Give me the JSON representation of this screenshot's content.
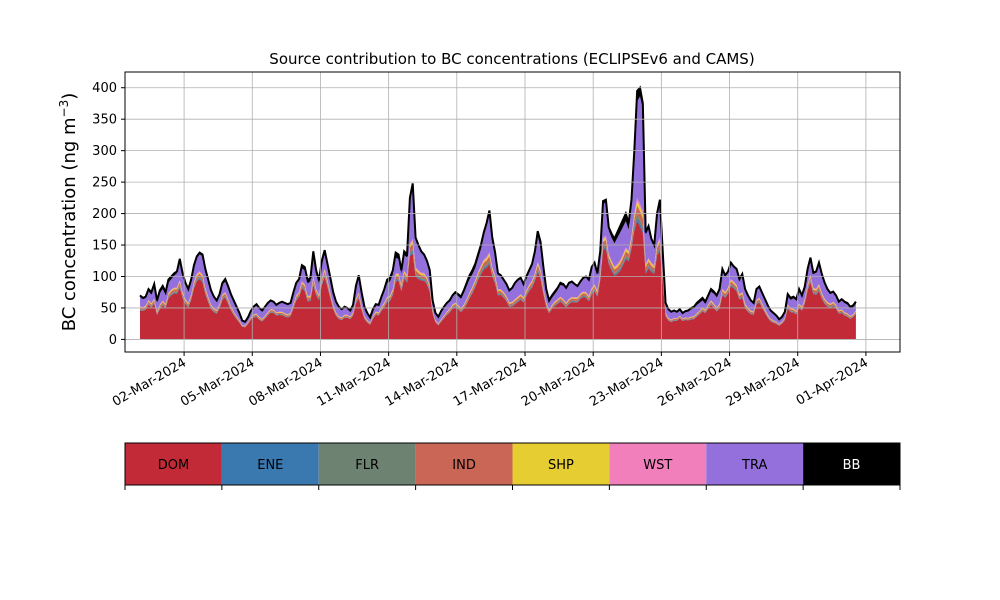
{
  "chart_data": {
    "type": "area",
    "title": "Source contribution to BC concentrations (ECLIPSEv6 and CAMS)",
    "ylabel": "BC concentration (ng m",
    "ylabel_sup": "−3",
    "ylabel_close": ")",
    "ylim": [
      -20,
      425
    ],
    "yticks": [
      0,
      50,
      100,
      150,
      200,
      250,
      300,
      350,
      400
    ],
    "xrange_days": [
      -1.6,
      32.5
    ],
    "xticks": [
      {
        "label": "02-Mar-2024",
        "day": 1
      },
      {
        "label": "05-Mar-2024",
        "day": 4
      },
      {
        "label": "08-Mar-2024",
        "day": 7
      },
      {
        "label": "11-Mar-2024",
        "day": 10
      },
      {
        "label": "14-Mar-2024",
        "day": 13
      },
      {
        "label": "17-Mar-2024",
        "day": 16
      },
      {
        "label": "20-Mar-2024",
        "day": 19
      },
      {
        "label": "23-Mar-2024",
        "day": 22
      },
      {
        "label": "26-Mar-2024",
        "day": 25
      },
      {
        "label": "29-Mar-2024",
        "day": 28
      },
      {
        "label": "01-Apr-2024",
        "day": 31
      }
    ],
    "grid": true,
    "legend_position": "below",
    "series": [
      {
        "name": "DOM",
        "color": "#c22a38",
        "text_color": "#000000"
      },
      {
        "name": "ENE",
        "color": "#3a78b0",
        "text_color": "#000000"
      },
      {
        "name": "FLR",
        "color": "#6e8272",
        "text_color": "#000000"
      },
      {
        "name": "IND",
        "color": "#c96656",
        "text_color": "#000000"
      },
      {
        "name": "SHP",
        "color": "#e5cd32",
        "text_color": "#000000"
      },
      {
        "name": "WST",
        "color": "#f07fbc",
        "text_color": "#000000"
      },
      {
        "name": "TRA",
        "color": "#9370db",
        "text_color": "#000000"
      },
      {
        "name": "BB",
        "color": "#000000",
        "text_color": "#ffffff"
      }
    ],
    "start_day": -0.94,
    "step_days": 0.125,
    "total": [
      70,
      66,
      68,
      80,
      75,
      88,
      62,
      78,
      85,
      75,
      95,
      100,
      105,
      108,
      128,
      105,
      90,
      80,
      95,
      118,
      132,
      138,
      135,
      112,
      95,
      78,
      68,
      62,
      72,
      90,
      96,
      85,
      72,
      62,
      52,
      42,
      30,
      28,
      35,
      45,
      52,
      56,
      50,
      46,
      52,
      58,
      62,
      60,
      55,
      58,
      60,
      58,
      56,
      58,
      75,
      90,
      96,
      118,
      115,
      94,
      98,
      140,
      110,
      94,
      125,
      142,
      120,
      98,
      75,
      60,
      52,
      48,
      52,
      50,
      46,
      55,
      85,
      102,
      75,
      52,
      42,
      35,
      48,
      56,
      55,
      68,
      80,
      95,
      98,
      110,
      138,
      135,
      110,
      140,
      135,
      225,
      248,
      162,
      150,
      140,
      135,
      125,
      110,
      62,
      42,
      36,
      45,
      52,
      58,
      62,
      70,
      75,
      72,
      68,
      78,
      90,
      102,
      110,
      120,
      135,
      150,
      170,
      185,
      205,
      162,
      138,
      105,
      102,
      95,
      88,
      78,
      82,
      90,
      95,
      98,
      88,
      100,
      110,
      120,
      140,
      172,
      155,
      115,
      80,
      62,
      70,
      76,
      82,
      90,
      88,
      82,
      90,
      92,
      88,
      85,
      92,
      98,
      100,
      95,
      115,
      122,
      105,
      140,
      220,
      222,
      178,
      168,
      160,
      170,
      180,
      190,
      200,
      185,
      222,
      300,
      395,
      400,
      375,
      170,
      180,
      160,
      150,
      200,
      222,
      140,
      58,
      48,
      44,
      46,
      44,
      48,
      42,
      45,
      46,
      50,
      52,
      58,
      62,
      66,
      60,
      70,
      80,
      76,
      70,
      80,
      112,
      102,
      108,
      122,
      116,
      112,
      96,
      104,
      80,
      70,
      62,
      58,
      80,
      84,
      74,
      64,
      54,
      46,
      42,
      38,
      32,
      36,
      44,
      72,
      66,
      68,
      64,
      80,
      70,
      84,
      112,
      130,
      106,
      108,
      122,
      104,
      90,
      80,
      74,
      76,
      70,
      60,
      64,
      60,
      58,
      52,
      54,
      60
    ]
  },
  "colors": {
    "grid": "#b0b0b0",
    "axis": "#000000",
    "total_line": "#000000"
  }
}
